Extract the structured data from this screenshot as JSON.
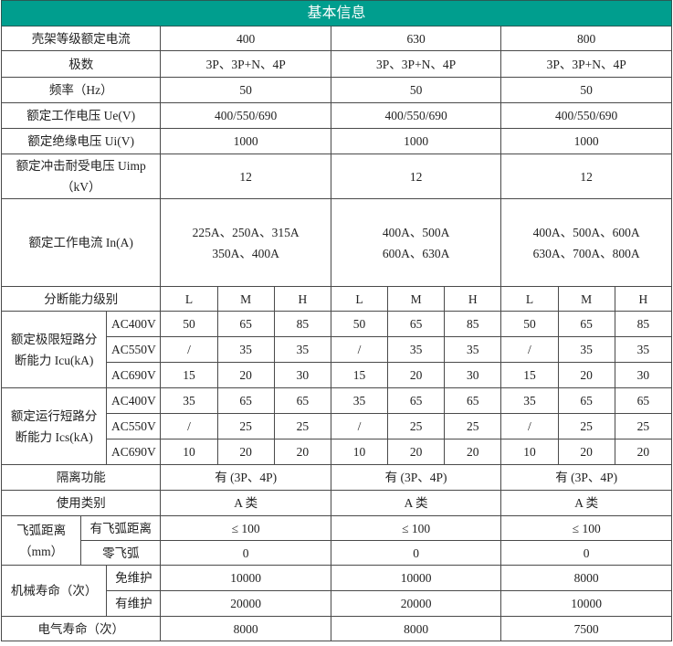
{
  "header": {
    "title": "基本信息",
    "color": "#009e8e"
  },
  "frame": {
    "label": "壳架等级额定电流",
    "values": [
      "400",
      "630",
      "800"
    ]
  },
  "simple": [
    {
      "label": "极数",
      "values": [
        "3P、3P+N、4P",
        "3P、3P+N、4P",
        "3P、3P+N、4P"
      ]
    },
    {
      "label": "频率（Hz）",
      "values": [
        "50",
        "50",
        "50"
      ]
    },
    {
      "label": "额定工作电压 Ue(V)",
      "values": [
        "400/550/690",
        "400/550/690",
        "400/550/690"
      ]
    },
    {
      "label": "额定绝缘电压 Ui(V)",
      "values": [
        "1000",
        "1000",
        "1000"
      ]
    },
    {
      "label": "额定冲击耐受电压 Uimp\n（kV）",
      "values": [
        "12",
        "12",
        "12"
      ]
    },
    {
      "label": "额定工作电流 In(A)",
      "values": [
        "225A、250A、315A\n350A、400A",
        "400A、500A\n600A、630A",
        "400A、500A、600A\n630A、700A、800A"
      ]
    }
  ],
  "levels": {
    "label": "分断能力级别",
    "values": [
      "L",
      "M",
      "H",
      "L",
      "M",
      "H",
      "L",
      "M",
      "H"
    ]
  },
  "icu": {
    "label": "额定极限短路分\n断能力 Icu(kA)",
    "rows": [
      {
        "voltage": "AC400V",
        "values": [
          "50",
          "65",
          "85",
          "50",
          "65",
          "85",
          "50",
          "65",
          "85"
        ]
      },
      {
        "voltage": "AC550V",
        "values": [
          "/",
          "35",
          "35",
          "/",
          "35",
          "35",
          "/",
          "35",
          "35"
        ]
      },
      {
        "voltage": "AC690V",
        "values": [
          "15",
          "20",
          "30",
          "15",
          "20",
          "30",
          "15",
          "20",
          "30"
        ]
      }
    ]
  },
  "ics": {
    "label": "额定运行短路分\n断能力 Ics(kA)",
    "rows": [
      {
        "voltage": "AC400V",
        "values": [
          "35",
          "65",
          "65",
          "35",
          "65",
          "65",
          "35",
          "65",
          "65"
        ]
      },
      {
        "voltage": "AC550V",
        "values": [
          "/",
          "25",
          "25",
          "/",
          "25",
          "25",
          "/",
          "25",
          "25"
        ]
      },
      {
        "voltage": "AC690V",
        "values": [
          "10",
          "20",
          "20",
          "10",
          "20",
          "20",
          "10",
          "20",
          "20"
        ]
      }
    ]
  },
  "isolation": {
    "label": "隔离功能",
    "values": [
      "有 (3P、4P)",
      "有 (3P、4P)",
      "有 (3P、4P)"
    ]
  },
  "category": {
    "label": "使用类别",
    "values": [
      "A 类",
      "A 类",
      "A 类"
    ]
  },
  "arc": {
    "label": "飞弧距离\n（mm）",
    "rows": [
      {
        "label": "有飞弧距离",
        "values": [
          "≤ 100",
          "≤ 100",
          "≤ 100"
        ]
      },
      {
        "label": "零飞弧",
        "values": [
          "0",
          "0",
          "0"
        ]
      }
    ]
  },
  "mech": {
    "label": "机械寿命（次）",
    "rows": [
      {
        "label": "免维护",
        "values": [
          "10000",
          "10000",
          "8000"
        ]
      },
      {
        "label": "有维护",
        "values": [
          "20000",
          "20000",
          "10000"
        ]
      }
    ]
  },
  "elec": {
    "label": "电气寿命（次）",
    "values": [
      "8000",
      "8000",
      "7500"
    ]
  }
}
